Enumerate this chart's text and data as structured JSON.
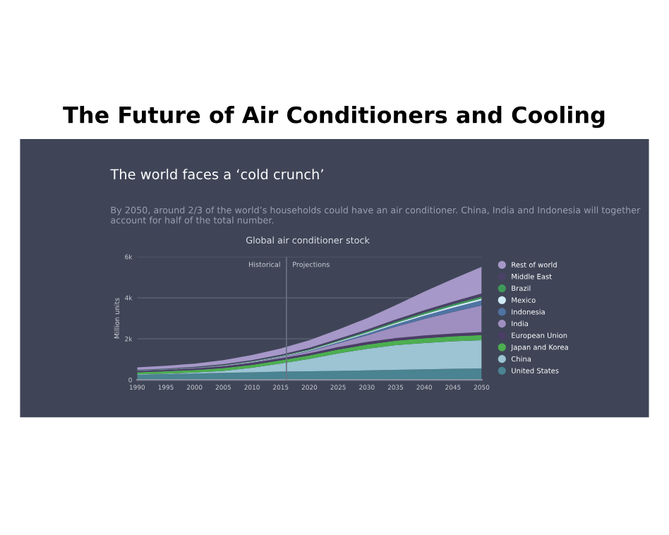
{
  "chart_data": {
    "type": "area",
    "stacked": true,
    "title": "The Future of Air Conditioners and Cooling",
    "subtitle": "The world faces a ‘cold crunch’",
    "annotations": [
      "By 2050, around 2/3 of the world’s households could have an air conditioner. China, India and Indonesia will together account for half of the total number.",
      "Global air conditioner stock",
      {
        "text": "Historical",
        "x": 2016,
        "y": 5600
      },
      {
        "text": "Projections",
        "x": 2016,
        "y": 5600
      }
    ],
    "ylabel": "Million units",
    "x": [
      1990,
      1995,
      2000,
      2005,
      2010,
      2015,
      2020,
      2025,
      2030,
      2035,
      2040,
      2045,
      2050
    ],
    "xlim": [
      1990,
      2050
    ],
    "xticks": [
      1990,
      1995,
      2000,
      2005,
      2010,
      2015,
      2020,
      2025,
      2030,
      2035,
      2040,
      2045,
      2050
    ],
    "ylim": [
      0,
      6000
    ],
    "yticks": [
      0,
      {
        "value": 2000,
        "label": "2k"
      },
      {
        "value": 4000,
        "label": "4k"
      },
      {
        "value": 6000,
        "label": "6k"
      }
    ],
    "grid": "y",
    "legend": "right",
    "ref_lines": [
      {
        "axis": "x",
        "value": 2016,
        "color": "#6b7283"
      }
    ],
    "series": [
      {
        "name": "United States",
        "color": "#4a8391",
        "values": [
          250,
          280,
          310,
          340,
          370,
          400,
          420,
          440,
          460,
          490,
          510,
          540,
          560
        ]
      },
      {
        "name": "China",
        "color": "#9cc4d3",
        "values": [
          20,
          30,
          50,
          100,
          220,
          400,
          600,
          850,
          1050,
          1200,
          1290,
          1340,
          1370
        ]
      },
      {
        "name": "Japan and Korea",
        "color": "#4caf50",
        "values": [
          100,
          110,
          120,
          130,
          140,
          150,
          170,
          190,
          210,
          220,
          230,
          240,
          250
        ]
      },
      {
        "name": "European Union",
        "color": "#4b3d66",
        "values": [
          60,
          70,
          80,
          90,
          100,
          100,
          110,
          120,
          130,
          130,
          140,
          140,
          150
        ]
      },
      {
        "name": "India",
        "color": "#9f8fc0",
        "values": [
          10,
          10,
          10,
          20,
          30,
          50,
          90,
          180,
          320,
          550,
          800,
          1050,
          1300
        ]
      },
      {
        "name": "Indonesia",
        "color": "#4f73a3",
        "values": [
          10,
          10,
          10,
          10,
          10,
          20,
          30,
          50,
          80,
          120,
          160,
          210,
          250
        ]
      },
      {
        "name": "Mexico",
        "color": "#d0ecf5",
        "values": [
          10,
          10,
          10,
          10,
          20,
          20,
          30,
          40,
          50,
          60,
          70,
          80,
          80
        ]
      },
      {
        "name": "Brazil",
        "color": "#3f9a5a",
        "values": [
          10,
          10,
          10,
          20,
          20,
          30,
          40,
          50,
          60,
          70,
          80,
          90,
          100
        ]
      },
      {
        "name": "Middle East",
        "color": "#4a4266",
        "values": [
          20,
          20,
          30,
          40,
          50,
          60,
          70,
          80,
          90,
          100,
          120,
          130,
          150
        ]
      },
      {
        "name": "Rest of world",
        "color": "#a698c8",
        "values": [
          120,
          140,
          160,
          200,
          250,
          300,
          370,
          450,
          550,
          700,
          900,
          1100,
          1300
        ]
      }
    ]
  }
}
